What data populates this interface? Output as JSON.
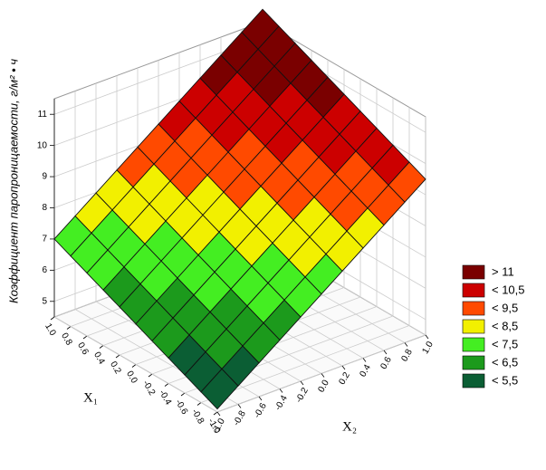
{
  "chart_data": {
    "type": "surface3d",
    "zlabel": "Коэффициент паропроницаемости, г/м² • ч",
    "xlabel": "X₁",
    "ylabel": "X₂",
    "x": [
      -1,
      -0.8,
      -0.6,
      -0.4,
      -0.2,
      0,
      0.2,
      0.4,
      0.6,
      0.8,
      1
    ],
    "y": [
      -1,
      -0.8,
      -0.6,
      -0.4,
      -0.2,
      0,
      0.2,
      0.4,
      0.6,
      0.8,
      1
    ],
    "z": [
      [
        4.6,
        5.09,
        5.58,
        6.07,
        6.56,
        7.05,
        7.54,
        8.03,
        8.52,
        9.01,
        9.5
      ],
      [
        4.84,
        5.33,
        5.82,
        6.31,
        6.8,
        7.29,
        7.78,
        8.27,
        8.76,
        9.25,
        9.74
      ],
      [
        5.08,
        5.57,
        6.06,
        6.55,
        7.04,
        7.53,
        8.02,
        8.51,
        9.0,
        9.49,
        9.98
      ],
      [
        5.32,
        5.81,
        6.3,
        6.79,
        7.28,
        7.77,
        8.26,
        8.75,
        9.24,
        9.73,
        10.22
      ],
      [
        5.56,
        6.05,
        6.54,
        7.03,
        7.52,
        8.01,
        8.5,
        8.99,
        9.48,
        9.97,
        10.46
      ],
      [
        5.8,
        6.29,
        6.78,
        7.27,
        7.76,
        8.25,
        8.74,
        9.23,
        9.72,
        10.21,
        10.7
      ],
      [
        6.04,
        6.53,
        7.02,
        7.51,
        8.0,
        8.49,
        8.98,
        9.47,
        9.96,
        10.45,
        10.94
      ],
      [
        6.28,
        6.77,
        7.26,
        7.75,
        8.24,
        8.73,
        9.22,
        9.71,
        10.2,
        10.69,
        11.18
      ],
      [
        6.52,
        7.01,
        7.5,
        7.99,
        8.48,
        8.97,
        9.46,
        9.95,
        10.44,
        10.93,
        11.42
      ],
      [
        6.76,
        7.25,
        7.74,
        8.23,
        8.72,
        9.21,
        9.7,
        10.19,
        10.68,
        11.17,
        11.66
      ],
      [
        7.0,
        7.49,
        7.98,
        8.47,
        8.96,
        9.45,
        9.94,
        10.43,
        10.92,
        11.41,
        11.9
      ]
    ],
    "xlim": [
      -1,
      1
    ],
    "ylim": [
      -1,
      1
    ],
    "zlim": [
      4.5,
      11.5
    ],
    "xticks": [
      {
        "value": -1,
        "label": "-1.0"
      },
      -0.8,
      -0.6,
      -0.4,
      -0.2,
      {
        "value": 0,
        "label": "0.0"
      },
      0.2,
      0.4,
      0.6,
      0.8,
      {
        "value": 1,
        "label": "1.0"
      }
    ],
    "yticks": [
      {
        "value": -1,
        "label": "-1.0"
      },
      -0.8,
      -0.6,
      -0.4,
      -0.2,
      {
        "value": 0,
        "label": "0.0"
      },
      0.2,
      0.4,
      0.6,
      0.8,
      {
        "value": 1,
        "label": "1.0"
      }
    ],
    "zticks": [
      5,
      6,
      7,
      8,
      9,
      10,
      11
    ],
    "grid": true,
    "color_scale": [
      {
        "label": "> 11",
        "value": 11,
        "color": "#7a0000"
      },
      {
        "label": "< 10,5",
        "value": 10.5,
        "color": "#cc0000"
      },
      {
        "label": "< 9,5",
        "value": 9.5,
        "color": "#ff4a00"
      },
      {
        "label": "< 8,5",
        "value": 8.5,
        "color": "#f2f000"
      },
      {
        "label": "< 7,5",
        "value": 7.5,
        "color": "#44ee22"
      },
      {
        "label": "< 6,5",
        "value": 6.5,
        "color": "#1c9a1c"
      },
      {
        "label": "< 5,5",
        "value": 5.5,
        "color": "#0b5e34"
      }
    ]
  }
}
